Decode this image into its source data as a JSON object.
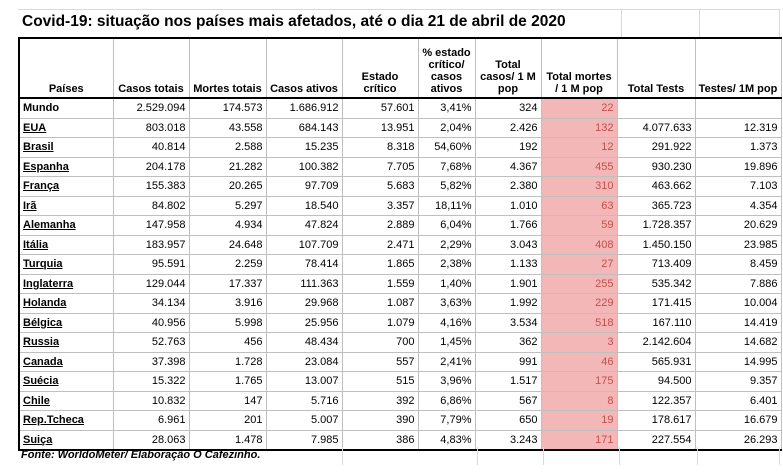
{
  "title": "Covid-19: situação nos países mais afetados, até o dia 21 de abril de 2020",
  "source": "Fonte: WorldoMeter/ Elaboração O Cafezinho.",
  "colors": {
    "highlight_bg": "#f4b7b8",
    "highlight_text": "#c0504d"
  },
  "headers": [
    "Países",
    "Casos totais",
    "Mortes totais",
    "Casos ativos",
    "Estado crítico",
    "% estado crítico/ casos ativos",
    "Total casos/ 1 M pop",
    "Total mortes / 1 M pop",
    "Total Tests",
    "Testes/ 1M pop"
  ],
  "rows": [
    [
      "Mundo",
      "2.529.094",
      "174.573",
      "1.686.912",
      "57.601",
      "3,41%",
      "324",
      "22",
      "",
      ""
    ],
    [
      "EUA",
      "803.018",
      "43.558",
      "684.143",
      "13.951",
      "2,04%",
      "2.426",
      "132",
      "4.077.633",
      "12.319"
    ],
    [
      "Brasil",
      "40.814",
      "2.588",
      "15.235",
      "8.318",
      "54,60%",
      "192",
      "12",
      "291.922",
      "1.373"
    ],
    [
      "Espanha",
      "204.178",
      "21.282",
      "100.382",
      "7.705",
      "7,68%",
      "4.367",
      "455",
      "930.230",
      "19.896"
    ],
    [
      "França",
      "155.383",
      "20.265",
      "97.709",
      "5.683",
      "5,82%",
      "2.380",
      "310",
      "463.662",
      "7.103"
    ],
    [
      "Irã",
      "84.802",
      "5.297",
      "18.540",
      "3.357",
      "18,11%",
      "1.010",
      "63",
      "365.723",
      "4.354"
    ],
    [
      "Alemanha",
      "147.958",
      "4.934",
      "47.824",
      "2.889",
      "6,04%",
      "1.766",
      "59",
      "1.728.357",
      "20.629"
    ],
    [
      "Itália",
      "183.957",
      "24.648",
      "107.709",
      "2.471",
      "2,29%",
      "3.043",
      "408",
      "1.450.150",
      "23.985"
    ],
    [
      "Turquia",
      "95.591",
      "2.259",
      "78.414",
      "1.865",
      "2,38%",
      "1.133",
      "27",
      "713.409",
      "8.459"
    ],
    [
      "Inglaterra",
      "129.044",
      "17.337",
      "111.363",
      "1.559",
      "1,40%",
      "1.901",
      "255",
      "535.342",
      "7.886"
    ],
    [
      "Holanda",
      "34.134",
      "3.916",
      "29.968",
      "1.087",
      "3,63%",
      "1.992",
      "229",
      "171.415",
      "10.004"
    ],
    [
      "Bélgica",
      "40.956",
      "5.998",
      "25.956",
      "1.079",
      "4,16%",
      "3.534",
      "518",
      "167.110",
      "14.419"
    ],
    [
      "Russia",
      "52.763",
      "456",
      "48.434",
      "700",
      "1,45%",
      "362",
      "3",
      "2.142.604",
      "14.682"
    ],
    [
      "Canada",
      "37.398",
      "1.728",
      "23.084",
      "557",
      "2,41%",
      "991",
      "46",
      "565.931",
      "14.995"
    ],
    [
      "Suécia",
      "15.322",
      "1.765",
      "13.007",
      "515",
      "3,96%",
      "1.517",
      "175",
      "94.500",
      "9.357"
    ],
    [
      "Chile",
      "10.832",
      "147",
      "5.716",
      "392",
      "6,86%",
      "567",
      "8",
      "122.357",
      "6.401"
    ],
    [
      "Rep.Tcheca",
      "6.961",
      "201",
      "5.007",
      "390",
      "7,79%",
      "650",
      "19",
      "178.617",
      "16.679"
    ],
    [
      "Suiça",
      "28.063",
      "1.478",
      "7.985",
      "386",
      "4,83%",
      "3.243",
      "171",
      "227.554",
      "26.293"
    ]
  ]
}
